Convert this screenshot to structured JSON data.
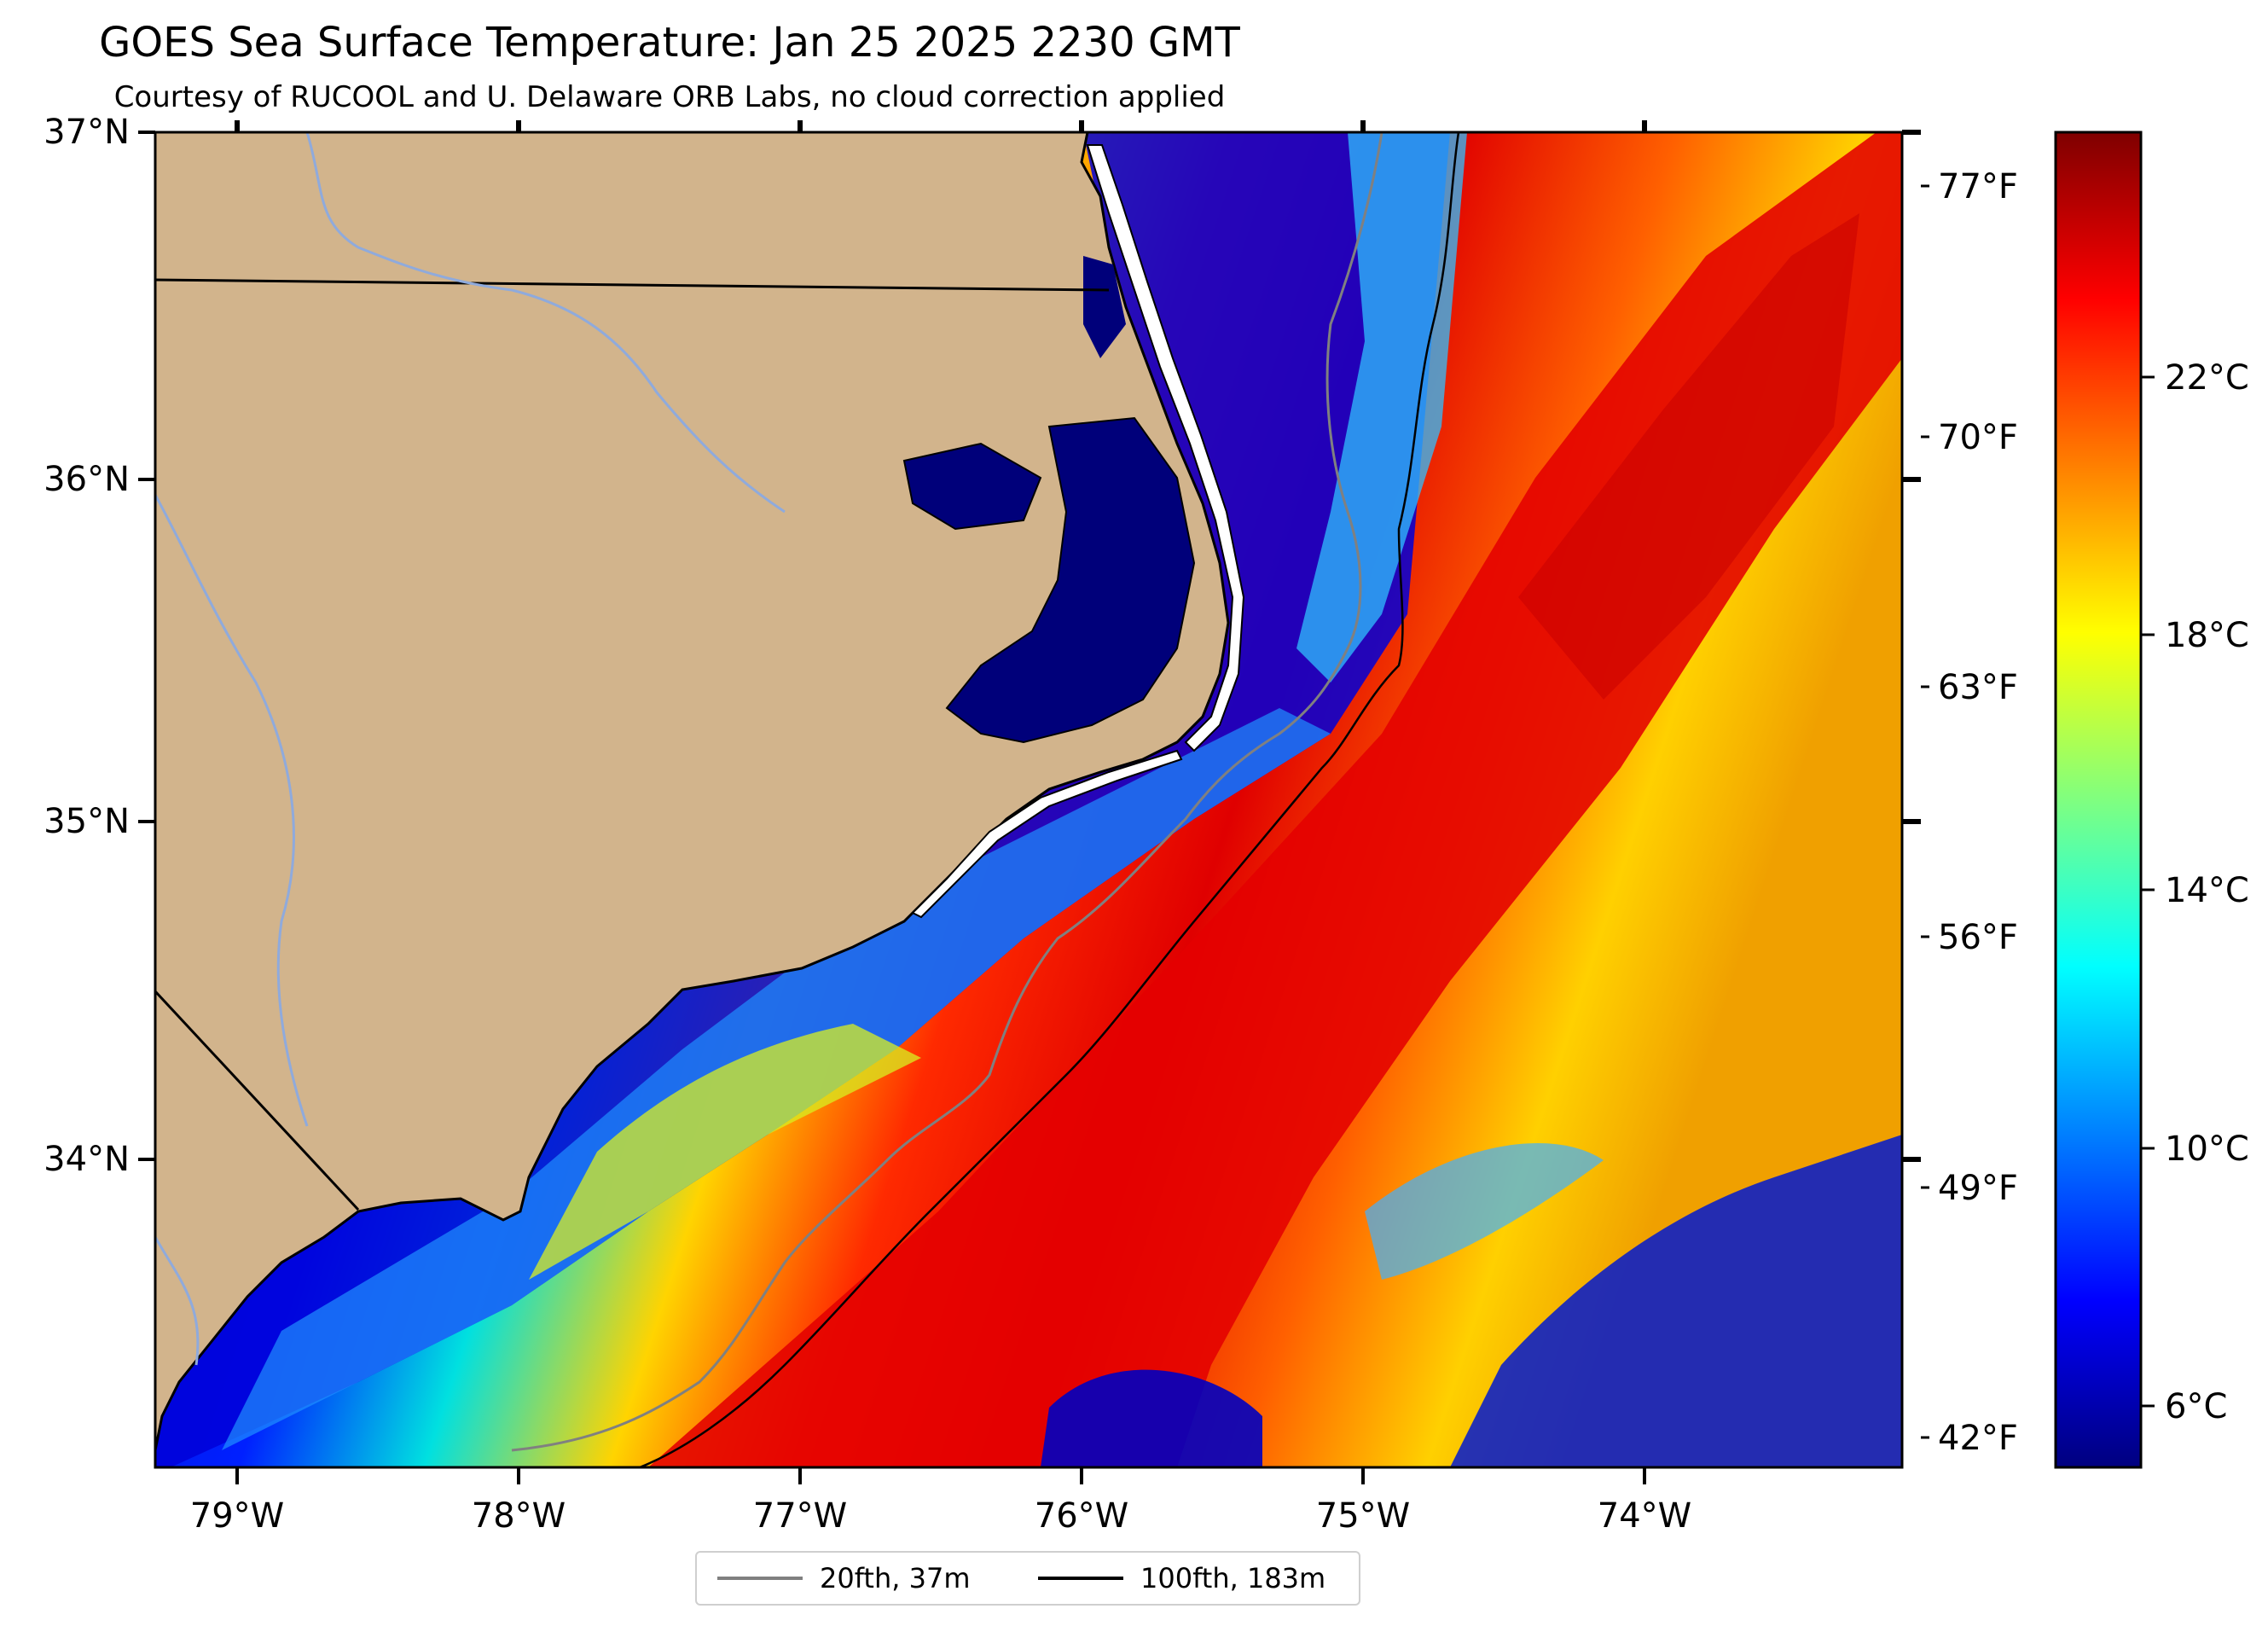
{
  "title": "GOES Sea Surface Temperature: Jan 25 2025 2230 GMT",
  "subtitle": "Courtesy of RUCOOL and U. Delaware ORB Labs, no cloud correction applied",
  "map": {
    "lat_range": [
      33.1,
      37.0
    ],
    "lon_range": [
      -79.3,
      -73.1
    ],
    "lat_labels": [
      "37°N",
      "36°N",
      "35°N",
      "34°N"
    ],
    "lon_labels": [
      "79°W",
      "78°W",
      "77°W",
      "76°W",
      "75°W",
      "74°W"
    ],
    "fahrenheit_labels": [
      "77°F",
      "70°F",
      "63°F",
      "56°F",
      "49°F",
      "42°F"
    ],
    "land_color": "#d2b48c",
    "coast_color": "#000000",
    "river_color": "#8faadc"
  },
  "colorbar": {
    "colormap": "jet",
    "range_c": [
      5,
      26
    ],
    "labels": [
      "22°C",
      "18°C",
      "14°C",
      "10°C",
      "6°C"
    ]
  },
  "legend": {
    "items": [
      {
        "label": "20fth, 37m",
        "color": "#808080"
      },
      {
        "label": "100fth, 183m",
        "color": "#000000"
      }
    ]
  }
}
